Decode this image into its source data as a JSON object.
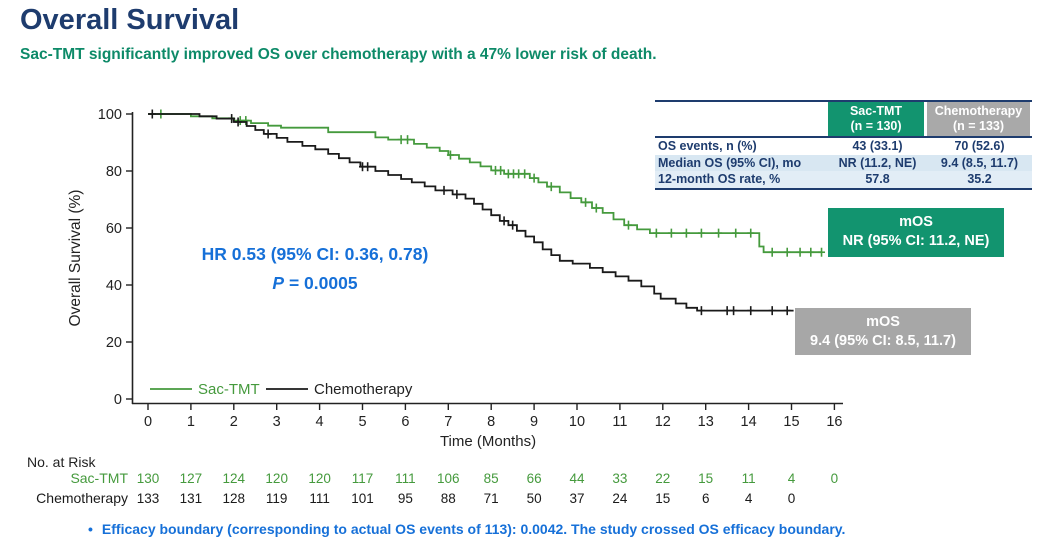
{
  "header": {
    "title": "Overall Survival",
    "subtitle": "Sac-TMT significantly improved OS over chemotherapy with a 47% lower risk of death."
  },
  "colors": {
    "navy": "#1e3c6e",
    "teal_green": "#12946f",
    "subtitle_green": "#0d8a68",
    "curve_green": "#459a3d",
    "curve_black": "#1a1a1a",
    "annotation_blue": "#1670d8",
    "box_gray": "#a7a7a7",
    "table_stripe_blue": "#d8e7f2",
    "axis_text": "#222222"
  },
  "stats_table": {
    "col_headers": [
      {
        "line1": "Sac-TMT",
        "line2": "(n = 130)"
      },
      {
        "line1": "Chemotherapy",
        "line2": "(n = 133)"
      }
    ],
    "rows": [
      {
        "label": "OS events, n (%)",
        "sac": "43 (33.1)",
        "chemo": "70 (52.6)"
      },
      {
        "label": "Median OS (95% CI), mo",
        "sac": "NR (11.2, NE)",
        "chemo": "9.4 (8.5, 11.7)"
      },
      {
        "label": "12-month OS rate, %",
        "sac": "57.8",
        "chemo": "35.2"
      }
    ]
  },
  "annotation": {
    "hr": "HR 0.53 (95% CI: 0.36, 0.78)",
    "p_label": "P",
    "p_rest": " = 0.0005"
  },
  "mos": {
    "green": {
      "title": "mOS",
      "value": "NR (95% CI: 11.2, NE)"
    },
    "gray": {
      "title": "mOS",
      "value": "9.4 (95% CI: 8.5, 11.7)"
    }
  },
  "footnote": {
    "bullet": "•",
    "text": "Efficacy boundary (corresponding to actual OS events of 113): 0.0042. The study crossed OS efficacy boundary."
  },
  "chart_data": {
    "type": "line",
    "subtype": "kaplan-meier-step",
    "title": "Overall Survival",
    "xlabel": "Time (Months)",
    "ylabel": "Overall Survival (%)",
    "xlim": [
      0,
      16
    ],
    "ylim": [
      0,
      100
    ],
    "xticks": [
      0,
      1,
      2,
      3,
      4,
      5,
      6,
      7,
      8,
      9,
      10,
      11,
      12,
      13,
      14,
      15,
      16
    ],
    "yticks": [
      0,
      20,
      40,
      60,
      80,
      100
    ],
    "grid": false,
    "legend_position": "inside-bottom-left",
    "series": [
      {
        "name": "Sac-TMT",
        "color": "#459a3d",
        "median_os": "NR (95% CI: 11.2, NE)",
        "steps": [
          [
            0,
            100
          ],
          [
            1.0,
            99.2
          ],
          [
            1.5,
            98.5
          ],
          [
            2.0,
            97.7
          ],
          [
            2.4,
            96.8
          ],
          [
            2.8,
            95.9
          ],
          [
            3.1,
            95.2
          ],
          [
            4.2,
            93.6
          ],
          [
            5.3,
            91.8
          ],
          [
            5.6,
            91.0
          ],
          [
            6.2,
            89.5
          ],
          [
            6.5,
            88.2
          ],
          [
            6.8,
            87.0
          ],
          [
            7.0,
            85.6
          ],
          [
            7.25,
            84.3
          ],
          [
            7.5,
            83.0
          ],
          [
            7.75,
            81.6
          ],
          [
            8.0,
            80.2
          ],
          [
            8.3,
            79.0
          ],
          [
            8.9,
            77.5
          ],
          [
            9.1,
            76.0
          ],
          [
            9.3,
            74.5
          ],
          [
            9.6,
            72.5
          ],
          [
            9.85,
            70.5
          ],
          [
            10.1,
            69.0
          ],
          [
            10.35,
            67.0
          ],
          [
            10.6,
            65.3
          ],
          [
            10.85,
            63.0
          ],
          [
            11.1,
            61.0
          ],
          [
            11.4,
            59.5
          ],
          [
            11.7,
            58.2
          ],
          [
            14.25,
            53.5
          ],
          [
            14.35,
            51.5
          ],
          [
            15.7,
            51.5
          ]
        ],
        "censors": [
          [
            0.3,
            100
          ],
          [
            2.15,
            97.7
          ],
          [
            2.28,
            97.7
          ],
          [
            5.9,
            91.0
          ],
          [
            6.05,
            91.0
          ],
          [
            7.05,
            85.6
          ],
          [
            8.1,
            80.2
          ],
          [
            8.22,
            80.2
          ],
          [
            8.4,
            79.0
          ],
          [
            8.52,
            79.0
          ],
          [
            8.64,
            79.0
          ],
          [
            8.78,
            79.0
          ],
          [
            9.0,
            77.5
          ],
          [
            9.4,
            74.5
          ],
          [
            10.2,
            69.0
          ],
          [
            10.45,
            67.0
          ],
          [
            11.2,
            61.0
          ],
          [
            11.85,
            58.2
          ],
          [
            12.2,
            58.2
          ],
          [
            12.55,
            58.2
          ],
          [
            12.9,
            58.2
          ],
          [
            13.3,
            58.2
          ],
          [
            13.7,
            58.2
          ],
          [
            14.05,
            58.2
          ],
          [
            14.55,
            51.5
          ],
          [
            14.9,
            51.5
          ],
          [
            15.2,
            51.5
          ],
          [
            15.45,
            51.5
          ],
          [
            15.7,
            51.5
          ]
        ]
      },
      {
        "name": "Chemotherapy",
        "color": "#1a1a1a",
        "median_os": "9.4 (95% CI: 8.5, 11.7)",
        "steps": [
          [
            0,
            100
          ],
          [
            1.2,
            99.2
          ],
          [
            1.6,
            98.4
          ],
          [
            2.0,
            97.2
          ],
          [
            2.3,
            95.8
          ],
          [
            2.5,
            94.4
          ],
          [
            2.7,
            93.0
          ],
          [
            3.0,
            91.6
          ],
          [
            3.25,
            90.2
          ],
          [
            3.6,
            88.8
          ],
          [
            3.9,
            87.6
          ],
          [
            4.2,
            86.0
          ],
          [
            4.45,
            84.5
          ],
          [
            4.7,
            83.0
          ],
          [
            4.95,
            81.5
          ],
          [
            5.3,
            80.0
          ],
          [
            5.6,
            78.6
          ],
          [
            5.9,
            77.2
          ],
          [
            6.15,
            76.0
          ],
          [
            6.45,
            74.6
          ],
          [
            6.7,
            73.2
          ],
          [
            7.1,
            71.8
          ],
          [
            7.4,
            70.3
          ],
          [
            7.6,
            68.5
          ],
          [
            7.8,
            66.5
          ],
          [
            8.0,
            64.5
          ],
          [
            8.2,
            62.5
          ],
          [
            8.4,
            61.0
          ],
          [
            8.6,
            59.0
          ],
          [
            8.8,
            57.0
          ],
          [
            9.0,
            55.0
          ],
          [
            9.2,
            52.5
          ],
          [
            9.4,
            50.5
          ],
          [
            9.6,
            48.5
          ],
          [
            9.9,
            47.5
          ],
          [
            10.3,
            46.0
          ],
          [
            10.6,
            44.5
          ],
          [
            10.9,
            43.0
          ],
          [
            11.2,
            41.5
          ],
          [
            11.5,
            39.5
          ],
          [
            11.8,
            37.0
          ],
          [
            11.95,
            35.2
          ],
          [
            12.3,
            33.5
          ],
          [
            12.55,
            32.0
          ],
          [
            12.8,
            31.0
          ],
          [
            15.05,
            31.0
          ]
        ],
        "censors": [
          [
            0.1,
            100
          ],
          [
            1.95,
            98.4
          ],
          [
            2.1,
            97.2
          ],
          [
            2.8,
            93.0
          ],
          [
            5.0,
            81.5
          ],
          [
            5.12,
            81.5
          ],
          [
            6.9,
            73.2
          ],
          [
            7.2,
            71.8
          ],
          [
            8.3,
            62.5
          ],
          [
            8.5,
            61.0
          ],
          [
            12.9,
            31.0
          ],
          [
            13.5,
            31.0
          ],
          [
            13.65,
            31.0
          ],
          [
            14.05,
            31.0
          ],
          [
            14.55,
            31.0
          ],
          [
            14.9,
            31.0
          ]
        ]
      }
    ],
    "at_risk": {
      "title": "No. at Risk",
      "times": [
        0,
        1,
        2,
        3,
        4,
        5,
        6,
        7,
        8,
        9,
        10,
        11,
        12,
        13,
        14,
        15,
        16
      ],
      "rows": [
        {
          "name": "Sac-TMT",
          "color": "#459a3d",
          "values": [
            130,
            127,
            124,
            120,
            120,
            117,
            111,
            106,
            85,
            66,
            44,
            33,
            22,
            15,
            11,
            4,
            0
          ]
        },
        {
          "name": "Chemotherapy",
          "color": "#1a1a1a",
          "values": [
            133,
            131,
            128,
            119,
            111,
            101,
            95,
            88,
            71,
            50,
            37,
            24,
            15,
            6,
            4,
            0
          ]
        }
      ]
    }
  }
}
